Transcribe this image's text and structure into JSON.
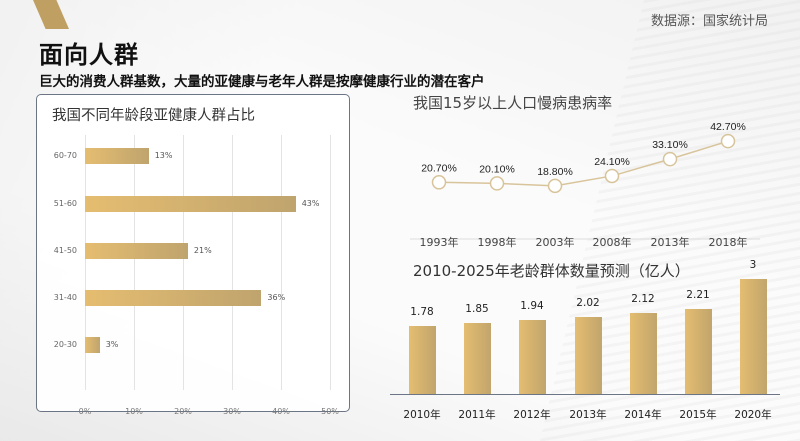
{
  "header": {
    "title": "面向人群",
    "subtitle": "巨大的消费人群基数，大量的亚健康与老年人群是按摩健康行业的潜在客户",
    "source": "数据源：国家统计局"
  },
  "colors": {
    "accent": "#c0a062",
    "bar_start": "#e5bd70",
    "bar_end": "#bfa46e",
    "line": "#d8c49a",
    "card_border": "#6b7585"
  },
  "chart_data": [
    {
      "type": "bar",
      "orientation": "horizontal",
      "title": "我国不同年龄段亚健康人群占比",
      "categories": [
        "60-70",
        "51-60",
        "41-50",
        "31-40",
        "20-30"
      ],
      "values": [
        13,
        43,
        21,
        36,
        3
      ],
      "value_labels": [
        "13%",
        "43%",
        "21%",
        "36%",
        "3%"
      ],
      "xticks": [
        "0%",
        "10%",
        "20%",
        "30%",
        "40%",
        "50%"
      ],
      "xlim": [
        0,
        50
      ],
      "grid": true,
      "xlabel": "",
      "ylabel": ""
    },
    {
      "type": "line",
      "title": "我国15岁以上人口慢病患病率",
      "categories": [
        "1993年",
        "1998年",
        "2003年",
        "2008年",
        "2013年",
        "2018年"
      ],
      "values": [
        20.7,
        20.1,
        18.8,
        24.1,
        33.1,
        42.7
      ],
      "value_labels": [
        "20.70%",
        "20.10%",
        "18.80%",
        "24.10%",
        "33.10%",
        "42.70%"
      ],
      "xlabel": "",
      "ylabel": ""
    },
    {
      "type": "bar",
      "orientation": "vertical",
      "title": "2010-2025年老龄群体数量预测（亿人）",
      "categories": [
        "2010年",
        "2011年",
        "2012年",
        "2013年",
        "2014年",
        "2015年",
        "2020年"
      ],
      "values": [
        1.78,
        1.85,
        1.94,
        2.02,
        2.12,
        2.21,
        3
      ],
      "value_labels": [
        "1.78",
        "1.85",
        "1.94",
        "2.02",
        "2.12",
        "2.21",
        "3"
      ],
      "xlabel": "",
      "ylabel": "亿人"
    }
  ]
}
